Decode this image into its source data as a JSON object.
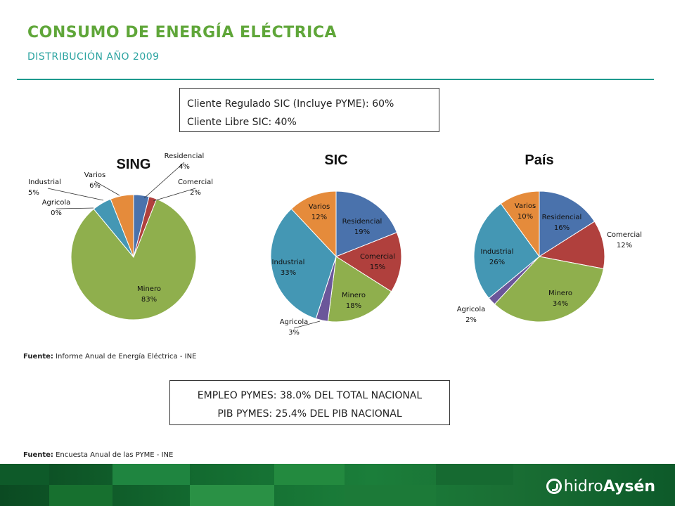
{
  "header": {
    "title": "CONSUMO DE ENERGÍA ELÉCTRICA",
    "subtitle": "DISTRIBUCIÓN AÑO 2009"
  },
  "top_box": {
    "line1": "Cliente Regulado SIC (Incluye PYME): 60%",
    "line2": "Cliente Libre SIC: 40%"
  },
  "source1": {
    "label": "Fuente:",
    "text": " Informe Anual de Energía Eléctrica - INE"
  },
  "bottom_box": {
    "line1": "EMPLEO PYMES: 38.0% DEL TOTAL NACIONAL",
    "line2": "PIB PYMES: 25.4% DEL PIB NACIONAL"
  },
  "source2": {
    "label": "Fuente:",
    "text": " Encuesta Anual de las PYME - INE"
  },
  "logo": {
    "part1": "hidro",
    "part2": "Aysén"
  },
  "colors": {
    "Residencial": "#4a72ac",
    "Comercial": "#b0403d",
    "Minero": "#8faf4d",
    "Agricola": "#6b569a",
    "Industrial": "#4497b4",
    "Varios": "#e58b3b"
  },
  "chart_data": [
    {
      "type": "pie",
      "title": "SING",
      "categories": [
        "Residencial",
        "Comercial",
        "Minero",
        "Agricola",
        "Industrial",
        "Varios"
      ],
      "values": [
        4,
        2,
        83,
        0,
        5,
        6
      ],
      "labels": [
        "4%",
        "2%",
        "83%",
        "0%",
        "5%",
        "6%"
      ]
    },
    {
      "type": "pie",
      "title": "SIC",
      "categories": [
        "Residencial",
        "Comercial",
        "Minero",
        "Agricola",
        "Industrial",
        "Varios"
      ],
      "values": [
        19,
        15,
        18,
        3,
        33,
        12
      ],
      "labels": [
        "19%",
        "15%",
        "18%",
        "3%",
        "33%",
        "12%"
      ]
    },
    {
      "type": "pie",
      "title": "País",
      "categories": [
        "Residencial",
        "Comercial",
        "Minero",
        "Agricola",
        "Industrial",
        "Varios"
      ],
      "values": [
        16,
        12,
        34,
        2,
        26,
        10
      ],
      "labels": [
        "16%",
        "12%",
        "34%",
        "2%",
        "26%",
        "10%"
      ]
    }
  ]
}
